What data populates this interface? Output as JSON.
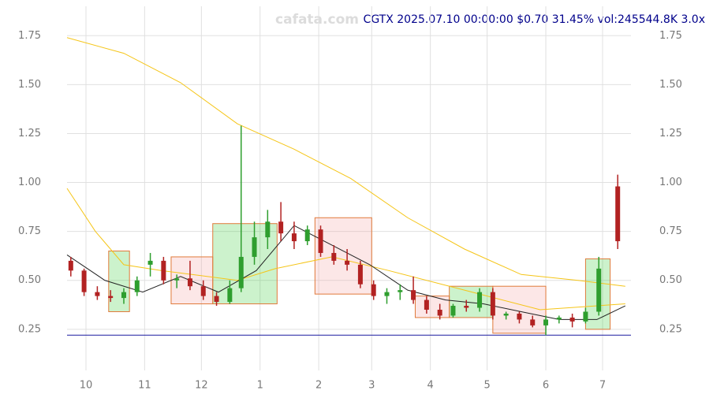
{
  "chart_data": {
    "type": "candlestick",
    "title": "CGTX 2025.07.10 00:00:00 $0.70 31.45% vol:245544.8K 3.0x",
    "watermark": "cafata.com",
    "xlim": [
      -10,
      288
    ],
    "ylim": [
      0.04,
      1.9
    ],
    "xticks": [
      {
        "value": 0,
        "label": "10"
      },
      {
        "value": 31,
        "label": "11"
      },
      {
        "value": 61,
        "label": "12"
      },
      {
        "value": 92,
        "label": "1"
      },
      {
        "value": 123,
        "label": "2"
      },
      {
        "value": 151,
        "label": "3"
      },
      {
        "value": 182,
        "label": "4"
      },
      {
        "value": 212,
        "label": "5"
      },
      {
        "value": 243,
        "label": "6"
      },
      {
        "value": 273,
        "label": "7"
      }
    ],
    "yticks": [
      0.25,
      {
        "value": 0.5,
        "label": "0.50"
      },
      0.75,
      {
        "value": 1,
        "label": "1.00"
      },
      1.25,
      {
        "value": 1.5,
        "label": "1.50"
      },
      1.75
    ],
    "grid": true,
    "up_color": "#2e9e2e",
    "down_color": "#b22222",
    "x": [
      -8,
      -1,
      6,
      13,
      20,
      27,
      34,
      41,
      48,
      55,
      62,
      69,
      76,
      82,
      89,
      96,
      103,
      110,
      117,
      124,
      131,
      138,
      145,
      152,
      159,
      166,
      173,
      180,
      187,
      194,
      201,
      208,
      215,
      222,
      229,
      236,
      243,
      250,
      257,
      264,
      271,
      281
    ],
    "open": [
      0.6,
      0.55,
      0.44,
      0.42,
      0.41,
      0.44,
      0.58,
      0.6,
      0.5,
      0.51,
      0.47,
      0.42,
      0.39,
      0.46,
      0.62,
      0.72,
      0.8,
      0.74,
      0.7,
      0.76,
      0.64,
      0.6,
      0.58,
      0.48,
      0.42,
      0.44,
      0.45,
      0.4,
      0.35,
      0.32,
      0.37,
      0.36,
      0.44,
      0.32,
      0.33,
      0.3,
      0.27,
      0.3,
      0.31,
      0.29,
      0.34,
      0.98
    ],
    "high": [
      0.62,
      0.56,
      0.47,
      0.45,
      0.46,
      0.52,
      0.64,
      0.62,
      0.53,
      0.6,
      0.5,
      0.44,
      0.5,
      1.29,
      0.8,
      0.86,
      0.9,
      0.8,
      0.78,
      0.78,
      0.68,
      0.66,
      0.6,
      0.5,
      0.46,
      0.48,
      0.52,
      0.42,
      0.38,
      0.38,
      0.4,
      0.46,
      0.46,
      0.34,
      0.34,
      0.32,
      0.32,
      0.32,
      0.33,
      0.36,
      0.62,
      1.04
    ],
    "low": [
      0.52,
      0.42,
      0.4,
      0.39,
      0.38,
      0.42,
      0.52,
      0.48,
      0.46,
      0.45,
      0.4,
      0.37,
      0.38,
      0.44,
      0.58,
      0.66,
      0.7,
      0.66,
      0.68,
      0.62,
      0.58,
      0.55,
      0.46,
      0.4,
      0.38,
      0.4,
      0.38,
      0.33,
      0.3,
      0.31,
      0.34,
      0.34,
      0.3,
      0.3,
      0.28,
      0.26,
      0.22,
      0.28,
      0.26,
      0.28,
      0.32,
      0.66
    ],
    "close": [
      0.55,
      0.44,
      0.42,
      0.41,
      0.44,
      0.5,
      0.6,
      0.5,
      0.51,
      0.47,
      0.42,
      0.39,
      0.46,
      0.62,
      0.72,
      0.8,
      0.74,
      0.7,
      0.76,
      0.64,
      0.6,
      0.58,
      0.48,
      0.42,
      0.44,
      0.45,
      0.4,
      0.35,
      0.32,
      0.37,
      0.36,
      0.44,
      0.32,
      0.33,
      0.3,
      0.27,
      0.3,
      0.31,
      0.29,
      0.34,
      0.56,
      0.7
    ],
    "lines": [
      {
        "color": "#f5c518",
        "x": [
          -10,
          20,
          50,
          80,
          110,
          140,
          170,
          200,
          230,
          260,
          285
        ],
        "values": [
          1.74,
          1.66,
          1.51,
          1.3,
          1.17,
          1.02,
          0.82,
          0.66,
          0.53,
          0.5,
          0.47
        ]
      },
      {
        "color": "#f5c518",
        "x": [
          -10,
          5,
          20,
          40,
          80,
          100,
          130,
          160,
          200,
          240,
          285
        ],
        "values": [
          0.97,
          0.75,
          0.58,
          0.55,
          0.5,
          0.56,
          0.62,
          0.55,
          0.45,
          0.35,
          0.38
        ]
      },
      {
        "color": "#222222",
        "x": [
          -10,
          10,
          30,
          50,
          70,
          90,
          110,
          130,
          150,
          170,
          190,
          210,
          230,
          250,
          270,
          285
        ],
        "values": [
          0.63,
          0.5,
          0.44,
          0.52,
          0.44,
          0.55,
          0.78,
          0.68,
          0.58,
          0.45,
          0.4,
          0.38,
          0.34,
          0.3,
          0.3,
          0.37
        ]
      }
    ],
    "hline": 0.22,
    "hline_color": "#1a1aa0",
    "boxes": [
      {
        "color": "#33cc33",
        "x": [
          12,
          23
        ],
        "y": [
          0.34,
          0.65
        ]
      },
      {
        "color": "#f4a0a0",
        "x": [
          45,
          67
        ],
        "y": [
          0.38,
          0.62
        ]
      },
      {
        "color": "#33cc33",
        "x": [
          67,
          101
        ],
        "y": [
          0.38,
          0.79
        ]
      },
      {
        "color": "#f4a0a0",
        "x": [
          121,
          151
        ],
        "y": [
          0.43,
          0.82
        ]
      },
      {
        "color": "#f4a0a0",
        "x": [
          174,
          192
        ],
        "y": [
          0.31,
          0.42
        ]
      },
      {
        "color": "#33cc33",
        "x": [
          192,
          215
        ],
        "y": [
          0.31,
          0.47
        ]
      },
      {
        "color": "#f4a0a0",
        "x": [
          215,
          243
        ],
        "y": [
          0.23,
          0.47
        ]
      },
      {
        "color": "#33cc33",
        "x": [
          264,
          277
        ],
        "y": [
          0.25,
          0.61
        ]
      }
    ]
  }
}
